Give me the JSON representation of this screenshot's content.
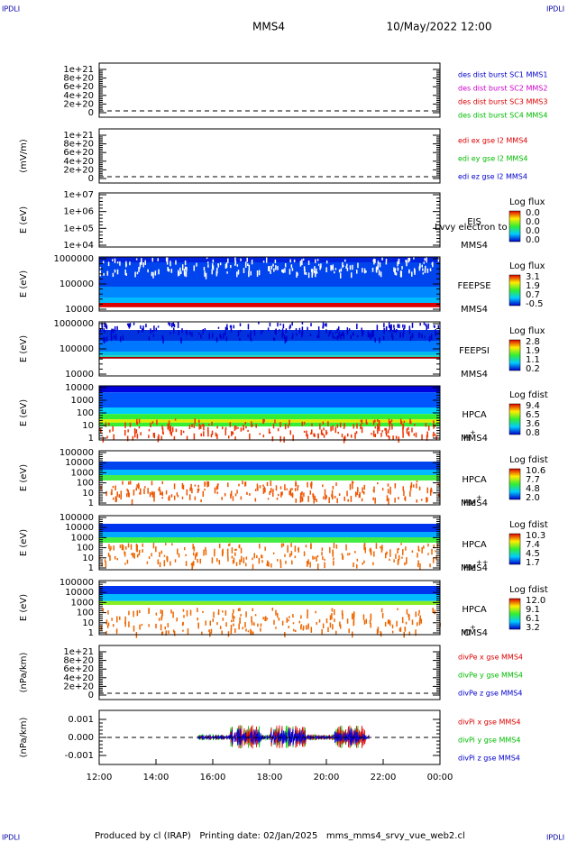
{
  "header": {
    "corner_left": "IPDLI",
    "corner_right": "IPDLI",
    "spacecraft": "MMS4",
    "date": "10/May/2022 12:00"
  },
  "panels": [
    {
      "yticks": [
        "1e+21",
        "8e+20",
        "6e+20",
        "4e+20",
        "2e+20",
        "0"
      ],
      "legend": [
        {
          "text": "des dist burst SC1 MMS1",
          "color": "#0000cc"
        },
        {
          "text": "des dist burst SC2 MMS2",
          "color": "#cc00cc"
        },
        {
          "text": "des dist burst SC3 MMS3",
          "color": "#dd0000"
        },
        {
          "text": "des dist burst SC4 MMS4",
          "color": "#00bb00"
        }
      ]
    },
    {
      "ylabel": "(mV/m)",
      "yticks": [
        "1e+21",
        "8e+20",
        "6e+20",
        "4e+20",
        "2e+20",
        "0"
      ],
      "legend": [
        {
          "text": "edi ex gse l2 MMS4",
          "color": "#dd0000"
        },
        {
          "text": "edi ey gse l2 MMS4",
          "color": "#00bb00"
        },
        {
          "text": "edi ez gse l2 MMS4",
          "color": "#0000cc"
        }
      ]
    },
    {
      "ylabel": "E (eV)",
      "yticks": [
        "1e+07",
        "1e+06",
        "1e+05",
        "1e+04"
      ],
      "side": [
        "EIS",
        "MMS4"
      ],
      "overlay": "Lvvy electron to",
      "cbar": {
        "title": "Log flux",
        "labels": [
          "0.0",
          "0.0",
          "0.0",
          "0.0"
        ]
      }
    },
    {
      "ylabel": "E (eV)",
      "yticks": [
        "1000000",
        "100000",
        "10000"
      ],
      "side": [
        "FEEPSE",
        "MMS4"
      ],
      "cbar": {
        "title": "Log flux",
        "labels": [
          "3.1",
          "1.9",
          "0.7",
          "-0.5"
        ]
      }
    },
    {
      "ylabel": "E (eV)",
      "yticks": [
        "1000000",
        "100000",
        "10000"
      ],
      "side": [
        "FEEPSI",
        "MMS4"
      ],
      "cbar": {
        "title": "Log flux",
        "labels": [
          "2.8",
          "1.9",
          "1.1",
          "0.2"
        ]
      }
    },
    {
      "ylabel": "E (eV)",
      "yticks": [
        "10000",
        "1000",
        "100",
        "10",
        "1"
      ],
      "side": [
        "HPCA",
        "MMS4"
      ],
      "ion": {
        "base": "H",
        "charge": "+"
      },
      "cbar": {
        "title": "Log fdist",
        "labels": [
          "9.4",
          "6.5",
          "3.6",
          "0.8"
        ]
      }
    },
    {
      "ylabel": "E (eV)",
      "yticks": [
        "100000",
        "10000",
        "1000",
        "100",
        "10",
        "1"
      ],
      "side": [
        "HPCA",
        "MMS4"
      ],
      "ion": {
        "base": "He",
        "charge": "+"
      },
      "cbar": {
        "title": "Log fdist",
        "labels": [
          "10.6",
          "7.7",
          "4.8",
          "2.0"
        ]
      }
    },
    {
      "ylabel": "E (eV)",
      "yticks": [
        "100000",
        "10000",
        "1000",
        "100",
        "10",
        "1"
      ],
      "side": [
        "HPCA",
        "MMS4"
      ],
      "ion": {
        "base": "He",
        "charge": "++"
      },
      "cbar": {
        "title": "Log fdist",
        "labels": [
          "10.3",
          "7.4",
          "4.5",
          "1.7"
        ]
      }
    },
    {
      "ylabel": "E (eV)",
      "yticks": [
        "100000",
        "10000",
        "1000",
        "100",
        "10",
        "1"
      ],
      "side": [
        "HPCA",
        "MMS4"
      ],
      "ion": {
        "base": "O",
        "charge": "+"
      },
      "cbar": {
        "title": "Log fdist",
        "labels": [
          "12.0",
          "9.1",
          "6.1",
          "3.2"
        ]
      }
    },
    {
      "ylabel": "(nPa/km)",
      "yticks": [
        "1e+21",
        "8e+20",
        "6e+20",
        "4e+20",
        "2e+20",
        "0"
      ],
      "legend": [
        {
          "text": "divPe x gse MMS4",
          "color": "#dd0000"
        },
        {
          "text": "divPe y gse MMS4",
          "color": "#00bb00"
        },
        {
          "text": "divPe z gse MMS4",
          "color": "#0000cc"
        }
      ]
    },
    {
      "ylabel": "(nPa/km)",
      "yticks": [
        "0.001",
        "0.000",
        "-0.001"
      ],
      "legend": [
        {
          "text": "divPi x gse MMS4",
          "color": "#dd0000"
        },
        {
          "text": "divPi y gse MMS4",
          "color": "#00bb00"
        },
        {
          "text": "divPi z gse MMS4",
          "color": "#0000cc"
        }
      ]
    }
  ],
  "xticks": [
    "12:00",
    "14:00",
    "16:00",
    "18:00",
    "20:00",
    "22:00",
    "00:00"
  ],
  "footer": {
    "text": "Produced by cl (IRAP)   Printing date: 02/Jan/2025   mms_mms4_srvy_vue_web2.cl",
    "corner_left": "IPDLI",
    "corner_right": "IPDLI"
  }
}
